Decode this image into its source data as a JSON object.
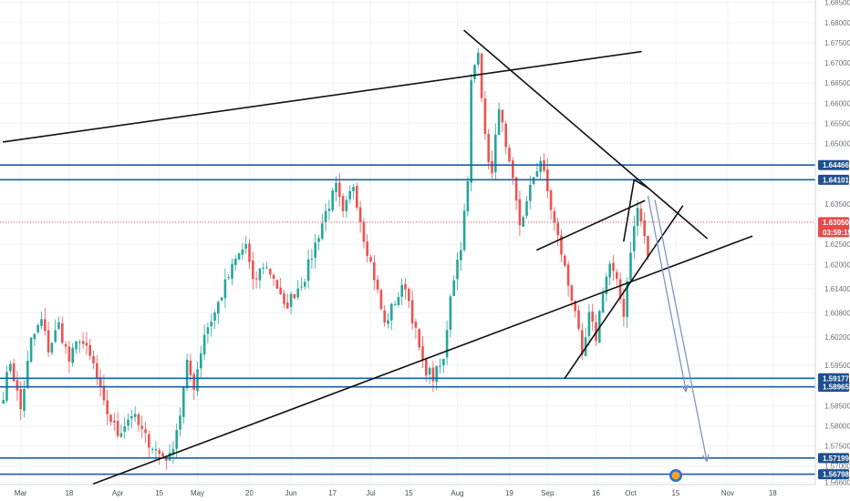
{
  "chart_data": {
    "type": "candlestick",
    "colors": {
      "up": "#26a69a",
      "down": "#ef5350",
      "level_line": "#1b5fa8",
      "level_badge": "#1e4f8f",
      "current_price": "#e84a4a",
      "trendline": "#111111",
      "projection_arrow": "#7f95c4",
      "grid": "#f0f3fa",
      "axis_text": "#6b6f7a"
    },
    "ylim": [
      1.5654,
      1.6856
    ],
    "y_ticks": [
      "1.56600",
      "1.57000",
      "1.57500",
      "1.58000",
      "1.58500",
      "1.59000",
      "1.59500",
      "1.60200",
      "1.60800",
      "1.61400",
      "1.62000",
      "1.62500",
      "1.63500",
      "1.65000",
      "1.65500",
      "1.66000",
      "1.66500",
      "1.67000",
      "1.67500",
      "1.68000",
      "1.68500"
    ],
    "x_ticks": [
      {
        "label": "Mar",
        "bar": 5
      },
      {
        "label": "18",
        "bar": 19
      },
      {
        "label": "Apr",
        "bar": 33
      },
      {
        "label": "15",
        "bar": 45
      },
      {
        "label": "May",
        "bar": 56
      },
      {
        "label": "20",
        "bar": 71
      },
      {
        "label": "Jun",
        "bar": 83
      },
      {
        "label": "17",
        "bar": 95
      },
      {
        "label": "Jul",
        "bar": 106
      },
      {
        "label": "15",
        "bar": 117
      },
      {
        "label": "Aug",
        "bar": 131
      },
      {
        "label": "19",
        "bar": 146
      },
      {
        "label": "Sep",
        "bar": 157
      },
      {
        "label": "16",
        "bar": 171
      },
      {
        "label": "Oct",
        "bar": 181
      },
      {
        "label": "15",
        "bar": 194
      },
      {
        "label": "Nov",
        "bar": 209
      },
      {
        "label": "18",
        "bar": 222
      }
    ],
    "bar_count": 236,
    "price_path": [
      [
        0,
        1.588
      ],
      [
        2,
        1.596
      ],
      [
        5,
        1.584
      ],
      [
        8,
        1.601
      ],
      [
        11,
        1.606
      ],
      [
        13,
        1.599
      ],
      [
        16,
        1.605
      ],
      [
        19,
        1.596
      ],
      [
        22,
        1.602
      ],
      [
        26,
        1.595
      ],
      [
        29,
        1.585
      ],
      [
        33,
        1.578
      ],
      [
        37,
        1.583
      ],
      [
        41,
        1.577
      ],
      [
        45,
        1.573
      ],
      [
        48,
        1.572
      ],
      [
        51,
        1.583
      ],
      [
        53,
        1.595
      ],
      [
        55,
        1.59
      ],
      [
        58,
        1.603
      ],
      [
        61,
        1.608
      ],
      [
        64,
        1.615
      ],
      [
        67,
        1.621
      ],
      [
        70,
        1.625
      ],
      [
        72,
        1.615
      ],
      [
        75,
        1.62
      ],
      [
        78,
        1.617
      ],
      [
        81,
        1.609
      ],
      [
        84,
        1.613
      ],
      [
        87,
        1.617
      ],
      [
        90,
        1.625
      ],
      [
        93,
        1.633
      ],
      [
        96,
        1.639
      ],
      [
        98,
        1.632
      ],
      [
        101,
        1.64
      ],
      [
        104,
        1.627
      ],
      [
        107,
        1.617
      ],
      [
        110,
        1.605
      ],
      [
        113,
        1.611
      ],
      [
        116,
        1.615
      ],
      [
        118,
        1.607
      ],
      [
        121,
        1.595
      ],
      [
        124,
        1.592
      ],
      [
        127,
        1.596
      ],
      [
        129,
        1.613
      ],
      [
        132,
        1.625
      ],
      [
        134,
        1.64
      ],
      [
        135,
        1.665
      ],
      [
        137,
        1.674
      ],
      [
        139,
        1.651
      ],
      [
        141,
        1.642
      ],
      [
        143,
        1.66
      ],
      [
        145,
        1.648
      ],
      [
        147,
        1.64
      ],
      [
        149,
        1.63
      ],
      [
        151,
        1.635
      ],
      [
        153,
        1.642
      ],
      [
        155,
        1.646
      ],
      [
        157,
        1.638
      ],
      [
        159,
        1.63
      ],
      [
        161,
        1.623
      ],
      [
        163,
        1.615
      ],
      [
        165,
        1.609
      ],
      [
        167,
        1.596
      ],
      [
        169,
        1.607
      ],
      [
        171,
        1.602
      ],
      [
        173,
        1.614
      ],
      [
        175,
        1.62
      ],
      [
        177,
        1.615
      ],
      [
        179,
        1.608
      ],
      [
        181,
        1.624
      ],
      [
        183,
        1.634
      ],
      [
        185,
        1.627
      ],
      [
        186,
        1.621
      ]
    ],
    "levels": [
      {
        "value": 1.64466,
        "label": "1.64466"
      },
      {
        "value": 1.64101,
        "label": "1.64101"
      },
      {
        "value": 1.59177,
        "label": "1.59177"
      },
      {
        "value": 1.58965,
        "label": "1.58965"
      },
      {
        "value": 1.57199,
        "label": "1.57199"
      },
      {
        "value": 1.56798,
        "label": "1.56798"
      }
    ],
    "current_price": {
      "value": 1.6305,
      "label": "1.63050",
      "countdown": "03:59:15"
    },
    "trendlines": [
      [
        [
          0,
          1.6504
        ],
        [
          184,
          1.6728
        ]
      ],
      [
        [
          26,
          1.5656
        ],
        [
          216,
          1.627
        ]
      ],
      [
        [
          133,
          1.678
        ],
        [
          203,
          1.6265
        ]
      ],
      [
        [
          154,
          1.6236
        ],
        [
          185,
          1.6358
        ]
      ],
      [
        [
          162,
          1.5918
        ],
        [
          196,
          1.6345
        ]
      ],
      [
        [
          179,
          1.6258
        ],
        [
          182,
          1.641
        ]
      ],
      [
        [
          182,
          1.641
        ],
        [
          186,
          1.639
        ]
      ]
    ],
    "projections": [
      [
        [
          186,
          1.637
        ],
        [
          197,
          1.5885
        ]
      ],
      [
        [
          188,
          1.636
        ],
        [
          203,
          1.5712
        ]
      ]
    ]
  }
}
